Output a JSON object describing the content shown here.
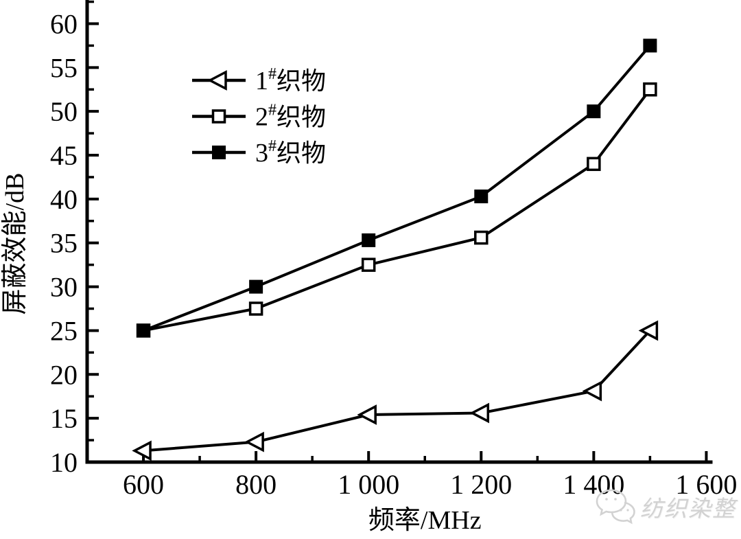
{
  "figure": {
    "background": "#ffffff"
  },
  "chart_data": {
    "type": "line",
    "title": "",
    "xlabel": "频率/MHz",
    "ylabel": "屏蔽效能/dB",
    "xlim": [
      500,
      1608
    ],
    "ylim": [
      10,
      62.7
    ],
    "grid": false,
    "legend_position": "upper-left-inside",
    "x": [
      600,
      800,
      1000,
      1200,
      1400,
      1500
    ],
    "x_ticks": [
      {
        "value": 600,
        "label": "600"
      },
      {
        "value": 800,
        "label": "800"
      },
      {
        "value": 1000,
        "label": "1 000"
      },
      {
        "value": 1200,
        "label": "1 200"
      },
      {
        "value": 1400,
        "label": "1 400"
      },
      {
        "value": 1600,
        "label": "1 600"
      }
    ],
    "x_minor_ticks": [
      700,
      900,
      1100,
      1300,
      1500
    ],
    "y_ticks": [
      {
        "value": 10,
        "label": "10"
      },
      {
        "value": 15,
        "label": "15"
      },
      {
        "value": 20,
        "label": "20"
      },
      {
        "value": 25,
        "label": "25"
      },
      {
        "value": 30,
        "label": "30"
      },
      {
        "value": 35,
        "label": "35"
      },
      {
        "value": 40,
        "label": "40"
      },
      {
        "value": 45,
        "label": "45"
      },
      {
        "value": 50,
        "label": "50"
      },
      {
        "value": 55,
        "label": "55"
      },
      {
        "value": 60,
        "label": "60"
      }
    ],
    "y_minor_ticks": [
      12.5,
      17.5,
      22.5,
      27.5,
      32.5,
      37.5,
      42.5,
      47.5,
      52.5,
      57.5,
      62.5
    ],
    "series": [
      {
        "name": "1#织物",
        "label": {
          "num": "1",
          "sup": "#",
          "text": "织物"
        },
        "marker": "triangle-left-open",
        "values": [
          11.3,
          12.3,
          15.4,
          15.6,
          18.1,
          25.0
        ]
      },
      {
        "name": "2#织物",
        "label": {
          "num": "2",
          "sup": "#",
          "text": "织物"
        },
        "marker": "square-open",
        "values": [
          25.0,
          27.5,
          32.5,
          35.6,
          44.0,
          52.5
        ]
      },
      {
        "name": "3#织物",
        "label": {
          "num": "3",
          "sup": "#",
          "text": "织物"
        },
        "marker": "square-filled",
        "values": [
          25.0,
          30.0,
          35.3,
          40.3,
          50.0,
          57.5
        ]
      }
    ],
    "colors": {
      "line": "#000000",
      "marker_open_fill": "#ffffff",
      "background": "#ffffff"
    }
  },
  "watermark": {
    "text": "纺织染整",
    "icon": "wechat-bubbles-icon",
    "color": "#d2d2d2"
  }
}
